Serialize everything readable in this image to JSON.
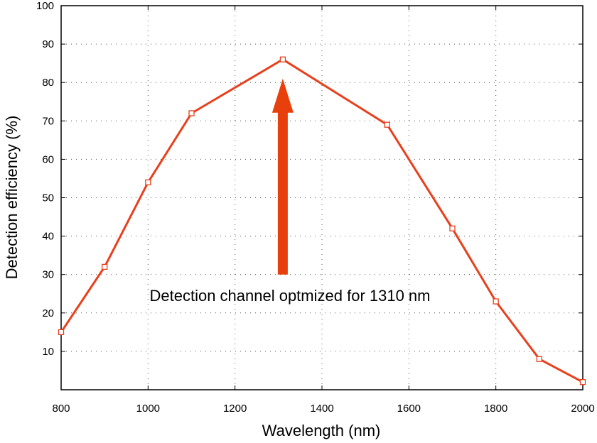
{
  "chart_data": {
    "type": "line",
    "title": "",
    "xlabel": "Wavelength (nm)",
    "ylabel": "Detection efficiency (%)",
    "xlim": [
      800,
      2000
    ],
    "ylim": [
      0,
      100
    ],
    "xticks": [
      800,
      1000,
      1200,
      1400,
      1600,
      1800,
      2000
    ],
    "yticks": [
      10,
      20,
      30,
      40,
      50,
      60,
      70,
      80,
      90,
      100
    ],
    "grid": true,
    "series": [
      {
        "color": "#e8401c",
        "marker": "square",
        "points": [
          {
            "x": 800,
            "y": 15
          },
          {
            "x": 900,
            "y": 32
          },
          {
            "x": 1000,
            "y": 54
          },
          {
            "x": 1100,
            "y": 72
          },
          {
            "x": 1310,
            "y": 86
          },
          {
            "x": 1550,
            "y": 69
          },
          {
            "x": 1700,
            "y": 42
          },
          {
            "x": 1800,
            "y": 23
          },
          {
            "x": 1900,
            "y": 8
          },
          {
            "x": 2000,
            "y": 2
          }
        ]
      }
    ],
    "annotation": {
      "text": "Detection channel optmized for 1310 nm",
      "arrow_x": 1310,
      "arrow_y_from": 30,
      "arrow_y_to": 81,
      "arrow_color": "#e8400c"
    }
  }
}
